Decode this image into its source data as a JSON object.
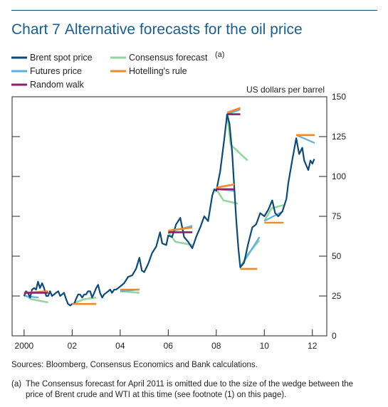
{
  "chart_data": {
    "type": "line",
    "chart_number": "Chart 7",
    "title": "Alternative forecasts for the oil price",
    "ylabel": "US dollars per barrel",
    "ylim": [
      0,
      150
    ],
    "xlim": [
      1999.5,
      2012.6
    ],
    "y_ticks": [
      0,
      25,
      50,
      75,
      100,
      125,
      150
    ],
    "x_ticks": [
      {
        "value": 2000,
        "label": "2000"
      },
      {
        "value": 2002,
        "label": "02"
      },
      {
        "value": 2004,
        "label": "04"
      },
      {
        "value": 2006,
        "label": "06"
      },
      {
        "value": 2008,
        "label": "08"
      },
      {
        "value": 2010,
        "label": "10"
      },
      {
        "value": 2012,
        "label": "12"
      }
    ],
    "legend_position": "top-left",
    "series": [
      {
        "name": "Brent spot price",
        "color": "#0d4a78",
        "points": [
          [
            2000.0,
            25
          ],
          [
            2000.08,
            28
          ],
          [
            2000.16,
            27
          ],
          [
            2000.25,
            24
          ],
          [
            2000.33,
            29
          ],
          [
            2000.42,
            30
          ],
          [
            2000.5,
            29
          ],
          [
            2000.58,
            34
          ],
          [
            2000.66,
            30
          ],
          [
            2000.75,
            33
          ],
          [
            2000.83,
            30
          ],
          [
            2000.92,
            25
          ],
          [
            2001.0,
            25
          ],
          [
            2001.08,
            28
          ],
          [
            2001.16,
            25
          ],
          [
            2001.25,
            26
          ],
          [
            2001.33,
            27
          ],
          [
            2001.42,
            28
          ],
          [
            2001.5,
            25
          ],
          [
            2001.58,
            26
          ],
          [
            2001.66,
            27
          ],
          [
            2001.75,
            23
          ],
          [
            2001.83,
            20
          ],
          [
            2001.92,
            19
          ],
          [
            2002.0,
            20
          ],
          [
            2002.08,
            20
          ],
          [
            2002.16,
            23
          ],
          [
            2002.25,
            26
          ],
          [
            2002.33,
            26
          ],
          [
            2002.42,
            24
          ],
          [
            2002.5,
            26
          ],
          [
            2002.58,
            26
          ],
          [
            2002.66,
            28
          ],
          [
            2002.75,
            28
          ],
          [
            2002.83,
            24
          ],
          [
            2002.92,
            27
          ],
          [
            2003.0,
            30
          ],
          [
            2003.08,
            32
          ],
          [
            2003.16,
            27
          ],
          [
            2003.25,
            24
          ],
          [
            2003.33,
            26
          ],
          [
            2003.42,
            27
          ],
          [
            2003.5,
            28
          ],
          [
            2003.58,
            29
          ],
          [
            2003.66,
            27
          ],
          [
            2003.75,
            29
          ],
          [
            2003.83,
            29
          ],
          [
            2003.92,
            30
          ],
          [
            2004.0,
            31
          ],
          [
            2004.16,
            33
          ],
          [
            2004.33,
            37
          ],
          [
            2004.5,
            38
          ],
          [
            2004.66,
            42
          ],
          [
            2004.8,
            49
          ],
          [
            2004.9,
            41
          ],
          [
            2005.0,
            40
          ],
          [
            2005.16,
            45
          ],
          [
            2005.33,
            52
          ],
          [
            2005.5,
            56
          ],
          [
            2005.66,
            65
          ],
          [
            2005.75,
            58
          ],
          [
            2005.92,
            57
          ],
          [
            2006.0,
            63
          ],
          [
            2006.16,
            62
          ],
          [
            2006.33,
            70
          ],
          [
            2006.5,
            74
          ],
          [
            2006.66,
            62
          ],
          [
            2006.83,
            59
          ],
          [
            2007.0,
            55
          ],
          [
            2007.16,
            62
          ],
          [
            2007.33,
            68
          ],
          [
            2007.5,
            75
          ],
          [
            2007.66,
            72
          ],
          [
            2007.83,
            88
          ],
          [
            2007.92,
            92
          ],
          [
            2008.0,
            91
          ],
          [
            2008.16,
            103
          ],
          [
            2008.33,
            123
          ],
          [
            2008.45,
            139
          ],
          [
            2008.55,
            133
          ],
          [
            2008.66,
            115
          ],
          [
            2008.83,
            73
          ],
          [
            2008.92,
            55
          ],
          [
            2009.0,
            43
          ],
          [
            2009.16,
            46
          ],
          [
            2009.33,
            58
          ],
          [
            2009.5,
            68
          ],
          [
            2009.66,
            70
          ],
          [
            2009.83,
            77
          ],
          [
            2010.0,
            75
          ],
          [
            2010.16,
            79
          ],
          [
            2010.33,
            85
          ],
          [
            2010.45,
            77
          ],
          [
            2010.58,
            75
          ],
          [
            2010.75,
            78
          ],
          [
            2010.92,
            86
          ],
          [
            2011.0,
            96
          ],
          [
            2011.16,
            110
          ],
          [
            2011.33,
            124
          ],
          [
            2011.45,
            114
          ],
          [
            2011.58,
            118
          ],
          [
            2011.66,
            110
          ],
          [
            2011.83,
            104
          ],
          [
            2011.92,
            110
          ],
          [
            2012.0,
            108
          ],
          [
            2012.08,
            111
          ]
        ]
      },
      {
        "name": "Futures price",
        "color": "#5cb0e0",
        "segments": [
          [
            [
              2000.0,
              25
            ],
            [
              2000.6,
              24
            ]
          ],
          [
            [
              2002.0,
              20
            ],
            [
              2002.9,
              20
            ]
          ],
          [
            [
              2004.0,
              28
            ],
            [
              2004.8,
              29
            ]
          ],
          [
            [
              2006.0,
              65
            ],
            [
              2007.0,
              69
            ]
          ],
          [
            [
              2008.0,
              92
            ],
            [
              2008.75,
              91
            ]
          ],
          [
            [
              2008.45,
              139
            ],
            [
              2009.0,
              142
            ]
          ],
          [
            [
              2009.0,
              43
            ],
            [
              2009.8,
              62
            ]
          ],
          [
            [
              2010.0,
              72
            ],
            [
              2010.75,
              78
            ]
          ],
          [
            [
              2011.33,
              126
            ],
            [
              2012.1,
              121
            ]
          ]
        ]
      },
      {
        "name": "Random walk",
        "color": "#8b1e6e",
        "segments": [
          [
            [
              2000.0,
              27
            ],
            [
              2001.0,
              27
            ]
          ],
          [
            [
              2006.0,
              65
            ],
            [
              2007.0,
              65
            ]
          ],
          [
            [
              2008.0,
              92
            ],
            [
              2008.75,
              92
            ]
          ],
          [
            [
              2008.45,
              139
            ],
            [
              2009.0,
              139
            ]
          ]
        ]
      },
      {
        "name": "Consensus forecast",
        "color": "#93d69e",
        "segments": [
          [
            [
              2000.0,
              26
            ],
            [
              2000.3,
              23
            ],
            [
              2001.0,
              21
            ]
          ],
          [
            [
              2002.0,
              20
            ],
            [
              2002.5,
              23
            ],
            [
              2003.0,
              24
            ]
          ],
          [
            [
              2004.0,
              28
            ],
            [
              2004.8,
              27
            ]
          ],
          [
            [
              2006.0,
              65
            ],
            [
              2006.3,
              59
            ],
            [
              2007.0,
              57
            ]
          ],
          [
            [
              2008.0,
              92
            ],
            [
              2008.3,
              85
            ],
            [
              2008.9,
              83
            ]
          ],
          [
            [
              2008.45,
              139
            ],
            [
              2008.6,
              120
            ],
            [
              2009.3,
              110
            ]
          ],
          [
            [
              2009.0,
              43
            ],
            [
              2009.3,
              51
            ],
            [
              2009.8,
              60
            ]
          ],
          [
            [
              2010.0,
              72
            ],
            [
              2010.3,
              80
            ],
            [
              2010.8,
              82
            ]
          ]
        ]
      },
      {
        "name": "Hotelling's rule",
        "color": "#f08a28",
        "segments": [
          [
            [
              2000.0,
              27
            ],
            [
              2001.0,
              28
            ]
          ],
          [
            [
              2002.0,
              20
            ],
            [
              2003.0,
              20
            ]
          ],
          [
            [
              2004.0,
              29
            ],
            [
              2004.8,
              29
            ]
          ],
          [
            [
              2006.0,
              66
            ],
            [
              2007.0,
              68
            ]
          ],
          [
            [
              2008.0,
              93
            ],
            [
              2008.75,
              95
            ]
          ],
          [
            [
              2008.45,
              140
            ],
            [
              2009.0,
              143
            ]
          ],
          [
            [
              2009.0,
              42
            ],
            [
              2009.7,
              42
            ]
          ],
          [
            [
              2010.0,
              71
            ],
            [
              2010.8,
              71
            ]
          ],
          [
            [
              2011.33,
              126
            ],
            [
              2012.1,
              126
            ]
          ]
        ]
      }
    ],
    "consensus_note_mark": "(a)",
    "sources": "Sources:  Bloomberg, Consensus Economics and Bank calculations.",
    "footnote": {
      "mark": "(a)",
      "text": "The Consensus forecast for April 2011 is omitted due to the size of the wedge between the price of Brent crude and WTI at this time (see footnote (1) on this page)."
    }
  }
}
